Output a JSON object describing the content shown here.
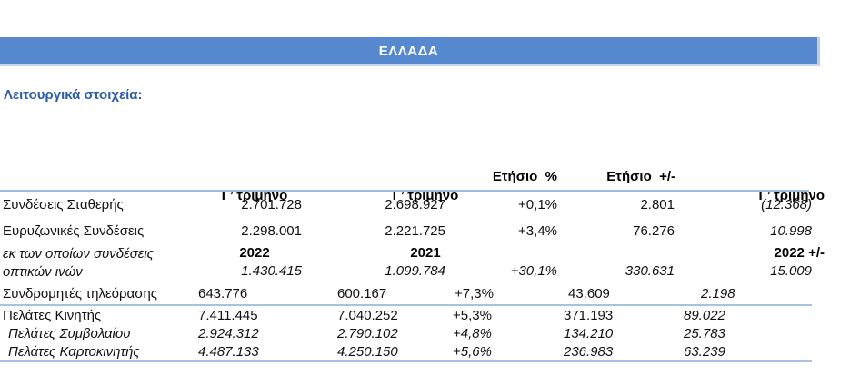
{
  "banner": {
    "title": "ΕΛΛΑΔΑ",
    "bg_color": "#5689d0",
    "text_color": "#ffffff"
  },
  "section_title": "Λειτουργικά στοιχεία:",
  "colors": {
    "section_title": "#2e5ca8",
    "rule_line": "#9bbade",
    "text": "#111111"
  },
  "table": {
    "headers": {
      "col1": {
        "line1": "Γ’ τρίμηνο",
        "line2": "2022"
      },
      "col2": {
        "line1": "Γ’ τρίμηνο",
        "line2": "2021"
      },
      "col3": {
        "label": "Ετήσιο  %"
      },
      "col4": {
        "label": "Ετήσιο  +/-"
      },
      "col5": {
        "line1": "Γ’ τρίμηνο",
        "line2": "2022 +/-"
      }
    },
    "rows": [
      {
        "label": "Συνδέσεις Σταθερής",
        "q3_2022": "2.701.728",
        "q3_2021": "2.698.927",
        "annual_pct": "+0,1%",
        "annual_diff": "2.801",
        "q3_2022_diff": "(12.368)"
      },
      {
        "label": "Ευρυζωνικές Συνδέσεις",
        "q3_2022": "2.298.001",
        "q3_2021": "2.221.725",
        "annual_pct": "+3,4%",
        "annual_diff": "76.276",
        "q3_2022_diff": "10.998"
      },
      {
        "label": "εκ των οποίων συνδέσεις οπτικών ινών",
        "q3_2022": "1.430.415",
        "q3_2021": "1.099.784",
        "annual_pct": "+30,1%",
        "annual_diff": "330.631",
        "q3_2022_diff": "15.009"
      },
      {
        "label": "Συνδρομητές τηλεόρασης",
        "q3_2022": "643.776",
        "q3_2021": "600.167",
        "annual_pct": "+7,3%",
        "annual_diff": "43.609",
        "q3_2022_diff": "2.198"
      },
      {
        "label": "Πελάτες Κινητής",
        "q3_2022": "7.411.445",
        "q3_2021": "7.040.252",
        "annual_pct": "+5,3%",
        "annual_diff": "371.193",
        "q3_2022_diff": "89.022"
      },
      {
        "label": "Πελάτες Συμβολαίου",
        "q3_2022": "2.924.312",
        "q3_2021": "2.790.102",
        "annual_pct": "+4,8%",
        "annual_diff": "134.210",
        "q3_2022_diff": "25.783"
      },
      {
        "label": "Πελάτες Καρτοκινητής",
        "q3_2022": "4.487.133",
        "q3_2021": "4.250.150",
        "annual_pct": "+5,6%",
        "annual_diff": "236.983",
        "q3_2022_diff": "63.239"
      }
    ]
  }
}
